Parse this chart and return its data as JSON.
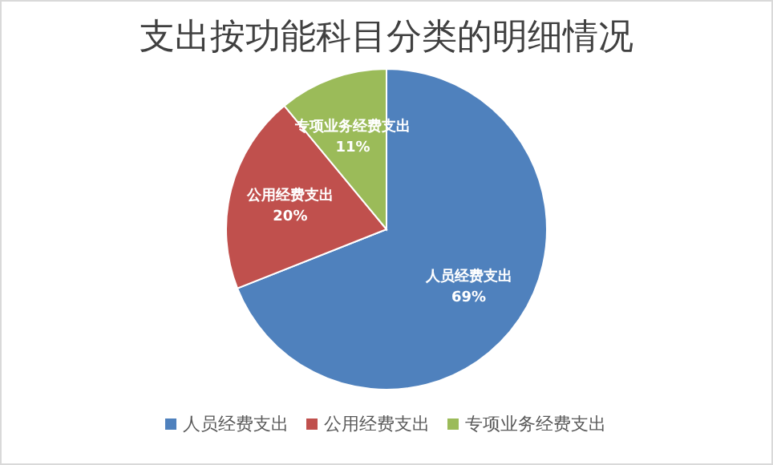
{
  "chart_data": {
    "type": "pie",
    "title": "支出按功能科目分类的明细情况",
    "categories": [
      "人员经费支出",
      "公用经费支出",
      "专项业务经费支出"
    ],
    "values": [
      69,
      20,
      11
    ],
    "colors": [
      "#4f81bd",
      "#c0504d",
      "#9bbb59"
    ],
    "value_labels": [
      "69%",
      "20%",
      "11%"
    ],
    "legend": "bottom"
  }
}
